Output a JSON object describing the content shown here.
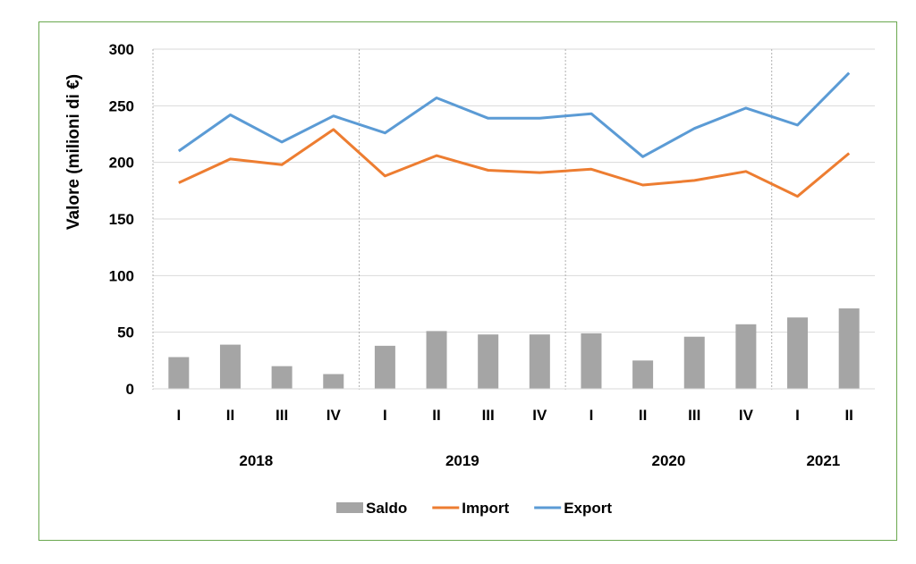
{
  "chart_data": {
    "type": "bar+line",
    "title": "",
    "ylabel": "Valore (milioni di €)",
    "xlabel": "",
    "ylim": [
      0,
      300
    ],
    "yticks": [
      0,
      50,
      100,
      150,
      200,
      250,
      300
    ],
    "grid": true,
    "legend_position": "bottom",
    "categories": [
      "I",
      "II",
      "III",
      "IV",
      "I",
      "II",
      "III",
      "IV",
      "I",
      "II",
      "III",
      "IV",
      "I",
      "II"
    ],
    "year_groups": [
      {
        "label": "2018",
        "start": 0,
        "end": 3
      },
      {
        "label": "2019",
        "start": 4,
        "end": 7
      },
      {
        "label": "2020",
        "start": 8,
        "end": 11
      },
      {
        "label": "2021",
        "start": 12,
        "end": 13
      }
    ],
    "series": [
      {
        "name": "Saldo",
        "type": "bar",
        "color": "#a5a5a5",
        "values": [
          28,
          39,
          20,
          13,
          38,
          51,
          48,
          48,
          49,
          25,
          46,
          57,
          63,
          71
        ]
      },
      {
        "name": "Import",
        "type": "line",
        "color": "#ed7d31",
        "values": [
          182,
          203,
          198,
          229,
          188,
          206,
          193,
          191,
          194,
          180,
          184,
          192,
          170,
          208
        ]
      },
      {
        "name": "Export",
        "type": "line",
        "color": "#5b9bd5",
        "values": [
          210,
          242,
          218,
          241,
          226,
          257,
          239,
          239,
          243,
          205,
          230,
          248,
          233,
          279
        ]
      }
    ]
  }
}
